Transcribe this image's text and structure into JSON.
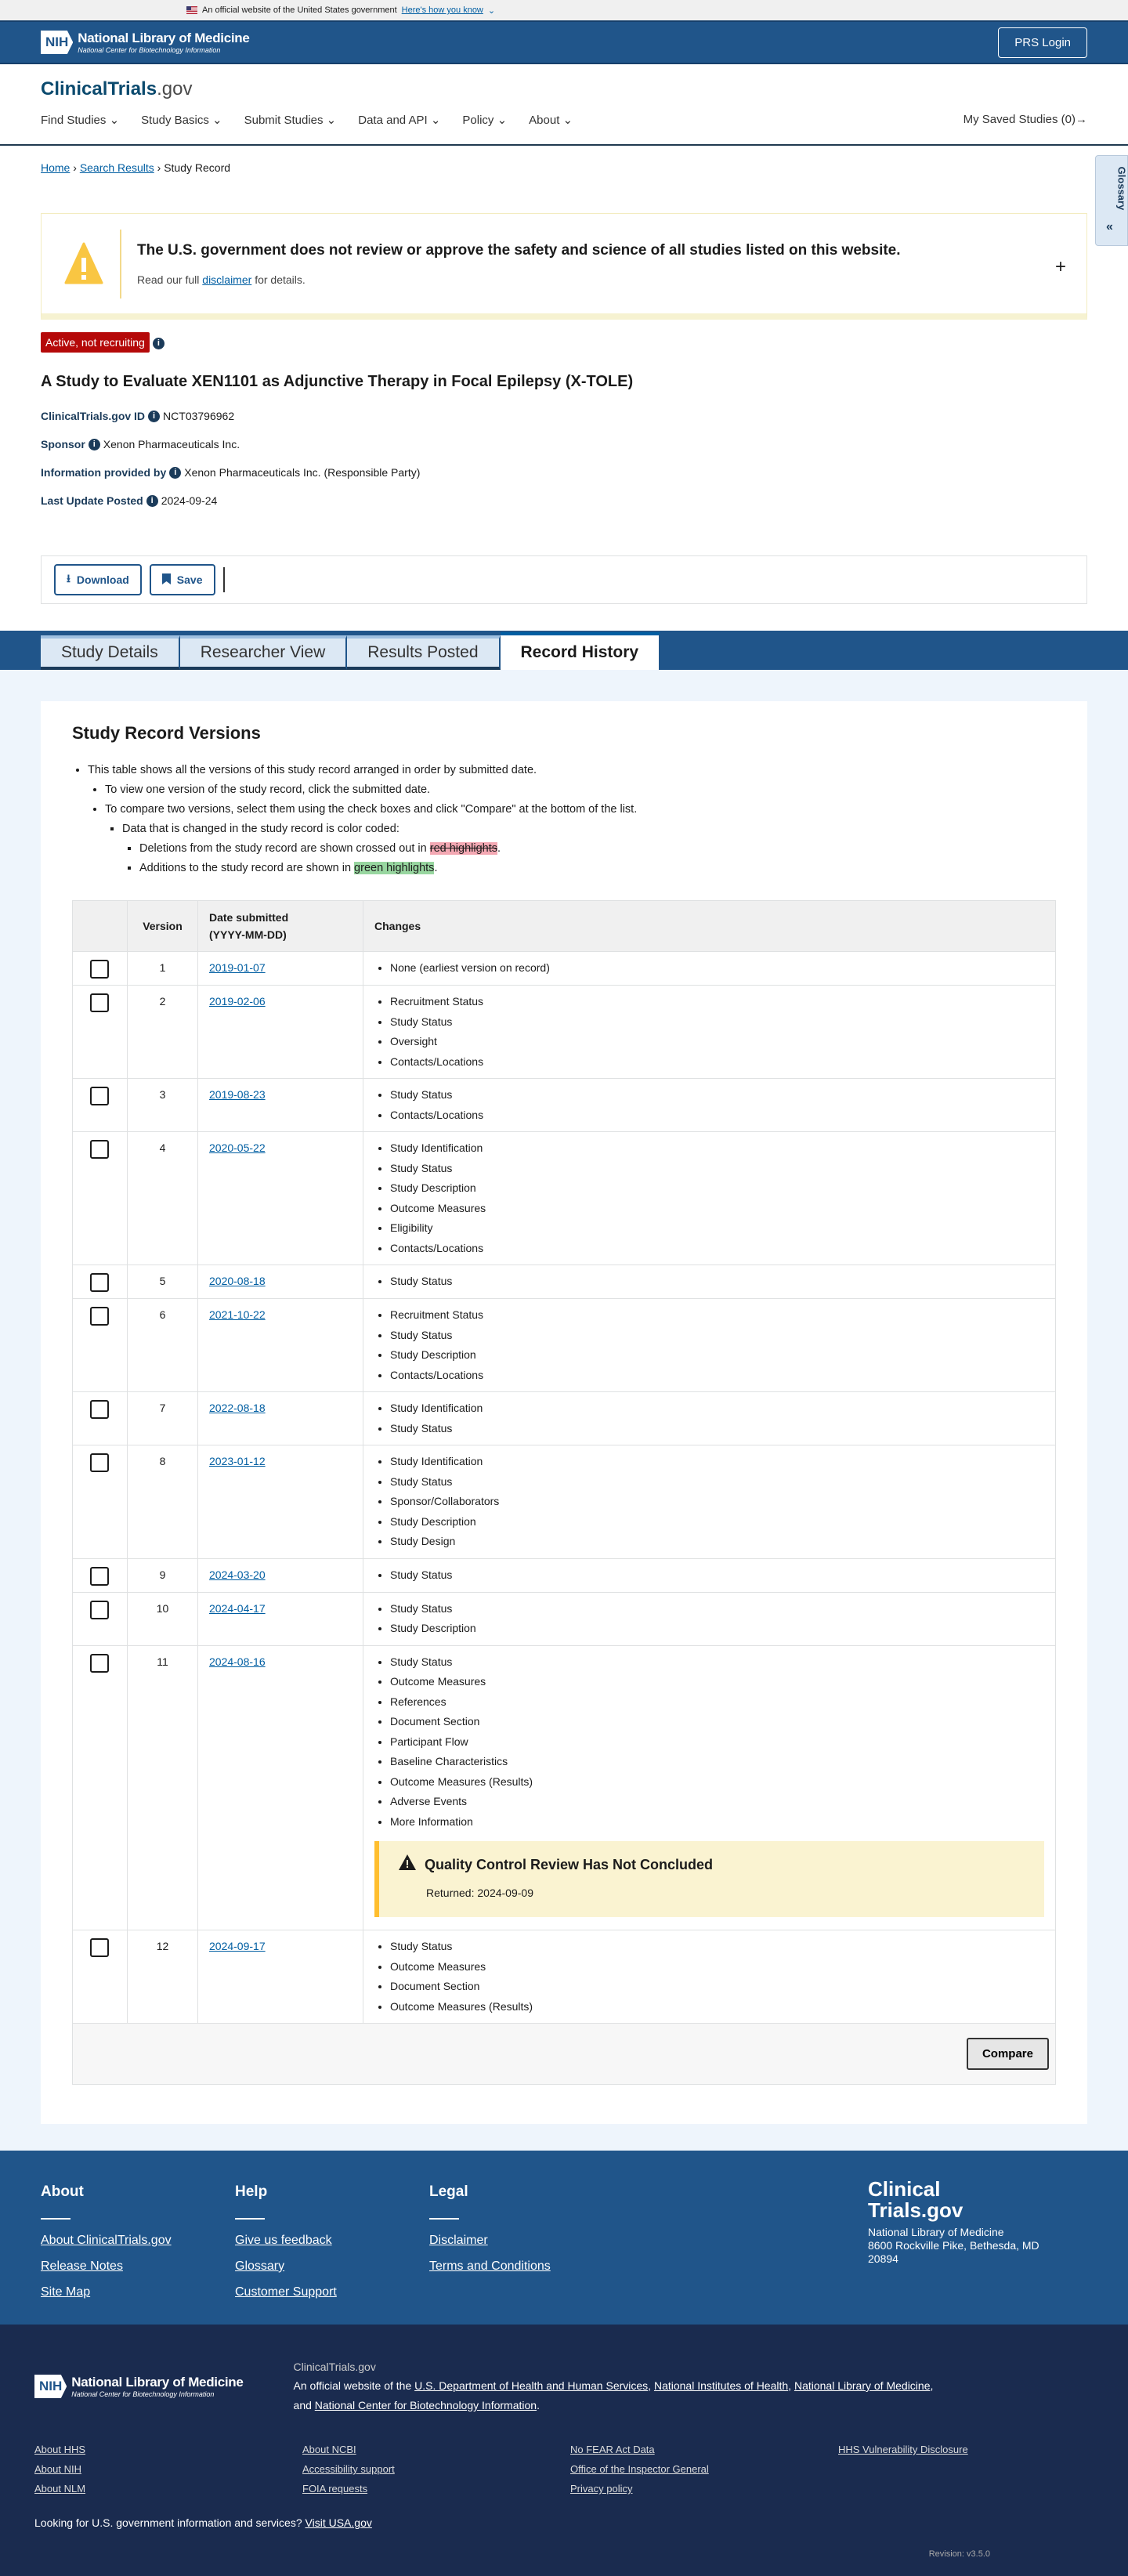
{
  "gov_banner": {
    "text": "An official website of the United States government",
    "link": "Here's how you know"
  },
  "header": {
    "org": "National Library of Medicine",
    "sub": "National Center for Biotechnology Information",
    "nih": "NIH",
    "login": "PRS Login"
  },
  "site": {
    "brand_a": "ClinicalTrials",
    "brand_b": ".gov",
    "nav": [
      "Find Studies",
      "Study Basics",
      "Submit Studies",
      "Data and API",
      "Policy",
      "About"
    ],
    "saved": "My Saved Studies (0)"
  },
  "breadcrumb": {
    "home": "Home",
    "results": "Search Results",
    "current": "Study Record"
  },
  "glossary": "Glossary",
  "disclaimer": {
    "title": "The U.S. government does not review or approve the safety and science of all studies listed on this website.",
    "pre": "Read our full",
    "link": "disclaimer",
    "post": "for details."
  },
  "study": {
    "status": "Active, not recruiting",
    "title": "A Study to Evaluate XEN1101 as Adjunctive Therapy in Focal Epilepsy (X-TOLE)",
    "fields": [
      {
        "label": "ClinicalTrials.gov ID",
        "value": "NCT03796962"
      },
      {
        "label": "Sponsor",
        "value": "Xenon Pharmaceuticals Inc."
      },
      {
        "label": "Information provided by",
        "value": "Xenon Pharmaceuticals Inc. (Responsible Party)"
      },
      {
        "label": "Last Update Posted",
        "value": "2024-09-24"
      }
    ]
  },
  "actions": {
    "download": "Download",
    "save": "Save"
  },
  "tabs": [
    "Study Details",
    "Researcher View",
    "Results Posted",
    "Record History"
  ],
  "versions": {
    "title": "Study Record Versions",
    "notes": {
      "n1": "This table shows all the versions of this study record arranged in order by submitted date.",
      "n2": "To view one version of the study record, click the submitted date.",
      "n3": "To compare two versions, select them using the check boxes and click \"Compare\" at the bottom of the list.",
      "n4": "Data that is changed in the study record is color coded:",
      "n5": "Deletions from the study record are shown crossed out in",
      "n5h": "red highlights",
      "n6": "Additions to the study record are shown in",
      "n6h": "green highlights",
      "dot": "."
    },
    "headers": {
      "version": "Version",
      "date": "Date submitted",
      "date2": "(YYYY-MM-DD)",
      "changes": "Changes"
    },
    "rows": [
      {
        "v": "1",
        "d": "2019-01-07",
        "c": [
          "None (earliest version on record)"
        ]
      },
      {
        "v": "2",
        "d": "2019-02-06",
        "c": [
          "Recruitment Status",
          "Study Status",
          "Oversight",
          "Contacts/Locations"
        ]
      },
      {
        "v": "3",
        "d": "2019-08-23",
        "c": [
          "Study Status",
          "Contacts/Locations"
        ]
      },
      {
        "v": "4",
        "d": "2020-05-22",
        "c": [
          "Study Identification",
          "Study Status",
          "Study Description",
          "Outcome Measures",
          "Eligibility",
          "Contacts/Locations"
        ]
      },
      {
        "v": "5",
        "d": "2020-08-18",
        "c": [
          "Study Status"
        ]
      },
      {
        "v": "6",
        "d": "2021-10-22",
        "c": [
          "Recruitment Status",
          "Study Status",
          "Study Description",
          "Contacts/Locations"
        ]
      },
      {
        "v": "7",
        "d": "2022-08-18",
        "c": [
          "Study Identification",
          "Study Status"
        ]
      },
      {
        "v": "8",
        "d": "2023-01-12",
        "c": [
          "Study Identification",
          "Study Status",
          "Sponsor/Collaborators",
          "Study Description",
          "Study Design"
        ]
      },
      {
        "v": "9",
        "d": "2024-03-20",
        "c": [
          "Study Status"
        ]
      },
      {
        "v": "10",
        "d": "2024-04-17",
        "c": [
          "Study Status",
          "Study Description"
        ]
      },
      {
        "v": "11",
        "d": "2024-08-16",
        "c": [
          "Study Status",
          "Outcome Measures",
          "References",
          "Document Section",
          "Participant Flow",
          "Baseline Characteristics",
          "Outcome Measures (Results)",
          "Adverse Events",
          "More Information"
        ],
        "qc": {
          "title": "Quality Control Review Has Not Concluded",
          "returned": "Returned: 2024-09-09"
        }
      },
      {
        "v": "12",
        "d": "2024-09-17",
        "c": [
          "Study Status",
          "Outcome Measures",
          "Document Section",
          "Outcome Measures (Results)"
        ]
      }
    ],
    "compare": "Compare"
  },
  "footer": {
    "cols": [
      {
        "h": "About",
        "links": [
          "About ClinicalTrials.gov",
          "Release Notes",
          "Site Map"
        ]
      },
      {
        "h": "Help",
        "links": [
          "Give us feedback",
          "Glossary",
          "Customer Support"
        ]
      },
      {
        "h": "Legal",
        "links": [
          "Disclaimer",
          "Terms and Conditions"
        ]
      }
    ],
    "brand1": "Clinical",
    "brand2": "Trials.gov",
    "addr1": "National Library of Medicine",
    "addr2": "8600 Rockville Pike, Bethesda, MD",
    "addr3": "20894",
    "site": "ClinicalTrials.gov",
    "official": "An official website of the",
    "hhs": "U.S. Department of Health and Human Services",
    "nih": "National Institutes of Health",
    "nlm": "National Library of Medicine",
    "and": "and",
    "ncbi": "National Center for Biotechnology Information",
    "links": [
      "About HHS",
      "About NCBI",
      "No FEAR Act Data",
      "HHS Vulnerability Disclosure",
      "About NIH",
      "Accessibility support",
      "Office of the Inspector General",
      "",
      "About NLM",
      "FOIA requests",
      "Privacy policy",
      ""
    ],
    "usa_q": "Looking for U.S. government information and services?",
    "usa_link": "Visit USA.gov",
    "revision": "Revision: v3.5.0"
  },
  "colors": {
    "primary": "#20558a",
    "status": "#b50909",
    "footer_dark": "#1a2b4f"
  }
}
